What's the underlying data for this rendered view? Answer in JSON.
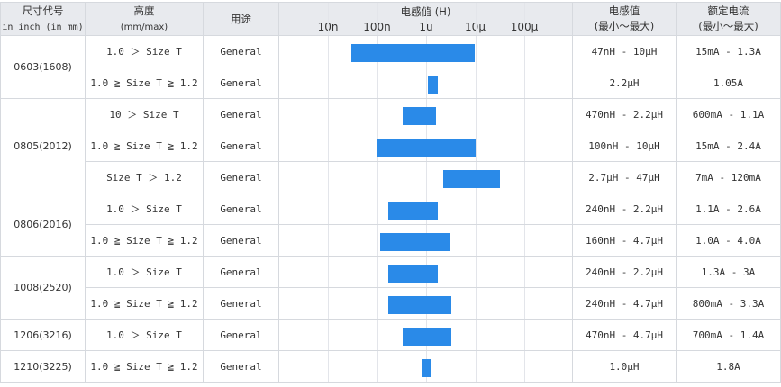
{
  "headers": {
    "size": "尺寸代号",
    "size_sub": "in inch (in mm)",
    "height": "高度",
    "height_sub": "(mm/max)",
    "use": "用途",
    "chart": "电感值 (H)",
    "ind": "电感值",
    "ind_sub": "(最小～最大)",
    "cur": "额定电流",
    "cur_sub": "(最小～最大)"
  },
  "colors": {
    "bar": "#2a8ae8",
    "header_bg": "#e8eaee"
  },
  "chart_data": {
    "type": "bar",
    "orientation": "horizontal-range",
    "xscale": "log",
    "title": "电感值 (H)",
    "ticks": [
      {
        "label": "10n",
        "value": 1e-08
      },
      {
        "label": "100n",
        "value": 1e-07
      },
      {
        "label": "1u",
        "value": 1e-06
      },
      {
        "label": "10µ",
        "value": 1e-05
      },
      {
        "label": "100µ",
        "value": 0.0001
      }
    ],
    "xlim": [
      1.5e-09,
      0.001
    ],
    "grid": true
  },
  "groups": [
    {
      "size": "0603(1608)",
      "rows": [
        {
          "height": "1.0 ＞ Size T",
          "use": "General",
          "min": 3e-08,
          "max": 1e-05,
          "ind": "47nH - 10μH",
          "cur": "15mA - 1.3A"
        },
        {
          "height": "1.0 ≧ Size T ≧ 1.2",
          "use": "General",
          "min": 1.1e-06,
          "max": 1.7e-06,
          "ind": "2.2μH",
          "cur": "1.05A"
        }
      ]
    },
    {
      "size": "0805(2012)",
      "rows": [
        {
          "height": "10 ＞ Size T",
          "use": "General",
          "min": 3.4e-07,
          "max": 1.6e-06,
          "ind": "470nH - 2.2μH",
          "cur": "600mA - 1.1A"
        },
        {
          "height": "1.0 ≧ Size T ≧ 1.2",
          "use": "General",
          "min": 1e-07,
          "max": 1e-05,
          "ind": "100nH - 10μH",
          "cur": "15mA - 2.4A"
        },
        {
          "height": "Size T ＞ 1.2",
          "use": "General",
          "min": 2.2e-06,
          "max": 3.2e-05,
          "ind": "2.7μH - 47μH",
          "cur": "7mA - 120mA"
        }
      ]
    },
    {
      "size": "0806(2016)",
      "rows": [
        {
          "height": "1.0 ＞ Size T",
          "use": "General",
          "min": 1.7e-07,
          "max": 1.7e-06,
          "ind": "240nH - 2.2μH",
          "cur": "1.1A - 2.6A"
        },
        {
          "height": "1.0 ≧ Size T ≧ 1.2",
          "use": "General",
          "min": 1.15e-07,
          "max": 3.1e-06,
          "ind": "160nH - 4.7μH",
          "cur": "1.0A - 4.0A"
        }
      ]
    },
    {
      "size": "1008(2520)",
      "rows": [
        {
          "height": "1.0 ＞ Size T",
          "use": "General",
          "min": 1.7e-07,
          "max": 1.7e-06,
          "ind": "240nH - 2.2μH",
          "cur": "1.3A - 3A"
        },
        {
          "height": "1.0 ≧ Size T ≧ 1.2",
          "use": "General",
          "min": 1.7e-07,
          "max": 3.2e-06,
          "ind": "240nH - 4.7μH",
          "cur": "800mA - 3.3A"
        }
      ]
    },
    {
      "size": "1206(3216)",
      "rows": [
        {
          "height": "1.0 ＞ Size T",
          "use": "General",
          "min": 3.4e-07,
          "max": 3.2e-06,
          "ind": "470nH - 4.7μH",
          "cur": "700mA - 1.4A"
        }
      ]
    },
    {
      "size": "1210(3225)",
      "rows": [
        {
          "height": "1.0 ≧ Size T ≧ 1.2",
          "use": "General",
          "min": 8.5e-07,
          "max": 1.3e-06,
          "ind": "1.0μH",
          "cur": "1.8A"
        }
      ]
    }
  ]
}
